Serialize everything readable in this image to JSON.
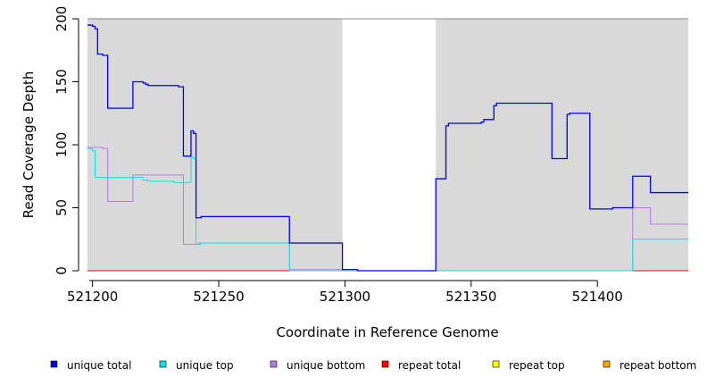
{
  "chart_data": {
    "type": "line",
    "title": "",
    "xlabel": "Coordinate in Reference Genome",
    "ylabel": "Read Coverage Depth",
    "xlim": [
      521198,
      521436
    ],
    "ylim": [
      0,
      200
    ],
    "xticks": [
      521200,
      521250,
      521300,
      521350,
      521400
    ],
    "yticks": [
      0,
      50,
      100,
      150,
      200
    ],
    "shaded_regions": [
      [
        521198,
        521299
      ],
      [
        521336,
        521436
      ]
    ],
    "legend_position": "bottom",
    "series": [
      {
        "name": "unique total",
        "color": "#0000ff",
        "points": [
          [
            521198,
            195
          ],
          [
            521200,
            194
          ],
          [
            521201,
            192
          ],
          [
            521202,
            172
          ],
          [
            521204,
            171
          ],
          [
            521206,
            129
          ],
          [
            521216,
            150
          ],
          [
            521220,
            149
          ],
          [
            521221,
            148
          ],
          [
            521222,
            147
          ],
          [
            521234,
            146
          ],
          [
            521236,
            91
          ],
          [
            521239,
            111
          ],
          [
            521240,
            109
          ],
          [
            521241,
            42
          ],
          [
            521243,
            43
          ],
          [
            521278,
            43
          ],
          [
            521278,
            22
          ],
          [
            521299,
            22
          ],
          [
            521299,
            1
          ],
          [
            521305,
            0
          ],
          [
            521336,
            0
          ],
          [
            521336,
            73
          ],
          [
            521340,
            115
          ],
          [
            521341,
            117
          ],
          [
            521354,
            118
          ],
          [
            521355,
            120
          ],
          [
            521359,
            131
          ],
          [
            521360,
            133
          ],
          [
            521382,
            133
          ],
          [
            521382,
            89
          ],
          [
            521388,
            89
          ],
          [
            521388,
            124
          ],
          [
            521389,
            125
          ],
          [
            521397,
            125
          ],
          [
            521397,
            49
          ],
          [
            521406,
            50
          ],
          [
            521414,
            50
          ],
          [
            521414,
            75
          ],
          [
            521421,
            75
          ],
          [
            521421,
            62
          ],
          [
            521436,
            62
          ]
        ]
      },
      {
        "name": "unique top",
        "color": "#00e6e6",
        "points": [
          [
            521198,
            97
          ],
          [
            521200,
            95
          ],
          [
            521201,
            74
          ],
          [
            521215,
            74
          ],
          [
            521220,
            72
          ],
          [
            521222,
            71
          ],
          [
            521232,
            70
          ],
          [
            521239,
            90
          ],
          [
            521240,
            89
          ],
          [
            521241,
            21
          ],
          [
            521243,
            22
          ],
          [
            521278,
            22
          ],
          [
            521278,
            1
          ],
          [
            521299,
            1
          ],
          [
            521300,
            0
          ],
          [
            521414,
            0
          ],
          [
            521414,
            25
          ],
          [
            521436,
            25
          ]
        ]
      },
      {
        "name": "unique bottom",
        "color": "#b57be8",
        "points": [
          [
            521198,
            98
          ],
          [
            521204,
            97
          ],
          [
            521206,
            55
          ],
          [
            521216,
            55
          ],
          [
            521216,
            76
          ],
          [
            521236,
            76
          ],
          [
            521236,
            21
          ],
          [
            521242,
            21
          ],
          [
            521242,
            22
          ],
          [
            521278,
            22
          ],
          [
            521278,
            0
          ],
          [
            521336,
            0
          ],
          [
            521414,
            0
          ],
          [
            521414,
            50
          ],
          [
            521421,
            50
          ],
          [
            521421,
            37
          ],
          [
            521436,
            37
          ]
        ]
      },
      {
        "name": "repeat total",
        "color": "#ff0000",
        "points": [
          [
            521198,
            0
          ],
          [
            521436,
            0
          ]
        ]
      },
      {
        "name": "repeat top",
        "color": "#ffff00",
        "points": [
          [
            521198,
            0
          ],
          [
            521436,
            0
          ]
        ]
      },
      {
        "name": "repeat bottom",
        "color": "#ffa500",
        "points": [
          [
            521198,
            0
          ],
          [
            521436,
            0
          ]
        ]
      }
    ]
  }
}
